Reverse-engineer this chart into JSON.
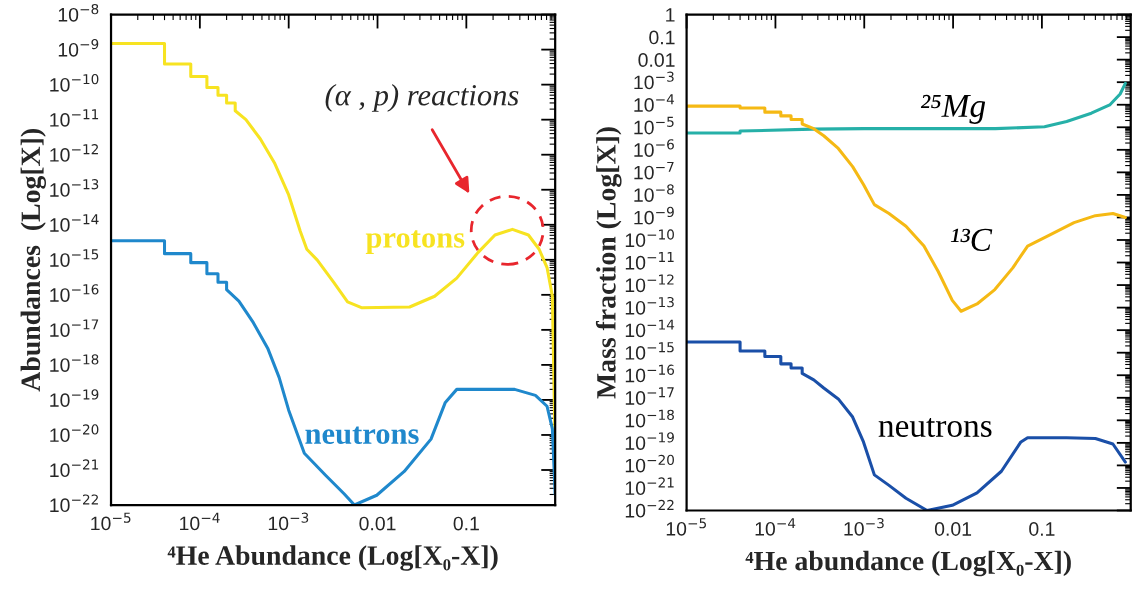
{
  "chart_data": [
    {
      "type": "line",
      "xlabel": "⁴He Abundance (Log[X₀-X])",
      "ylabel": "Abundances  (Log[X])",
      "log": "xy",
      "legend": false,
      "grid": false,
      "xlim": [
        1e-05,
        1
      ],
      "ylim": [
        1e-22,
        1e-08
      ],
      "xticks": [
        {
          "value": 1e-05,
          "label": "10$^{−5}$"
        },
        {
          "value": 0.0001,
          "label": "10$^{−4}$"
        },
        {
          "value": 0.001,
          "label": "10$^{−3}$"
        },
        {
          "value": 0.01,
          "label": "0.01"
        },
        {
          "value": 0.1,
          "label": "0.1"
        }
      ],
      "yticks": [
        {
          "value": 1e-22,
          "label": "10$^{−22}$"
        },
        {
          "value": 1e-21,
          "label": "10$^{−21}$"
        },
        {
          "value": 1e-20,
          "label": "10$^{−20}$"
        },
        {
          "value": 1e-19,
          "label": "10$^{−19}$"
        },
        {
          "value": 1e-18,
          "label": "10$^{−18}$"
        },
        {
          "value": 1e-17,
          "label": "10$^{−17}$"
        },
        {
          "value": 1e-16,
          "label": "10$^{−16}$"
        },
        {
          "value": 1e-15,
          "label": "10$^{−15}$"
        },
        {
          "value": 1e-14,
          "label": "10$^{−14}$"
        },
        {
          "value": 1e-13,
          "label": "10$^{−13}$"
        },
        {
          "value": 1e-12,
          "label": "10$^{−12}$"
        },
        {
          "value": 1e-11,
          "label": "10$^{−11}$"
        },
        {
          "value": 1e-10,
          "label": "10$^{−10}$"
        },
        {
          "value": 1e-09,
          "label": "10$^{−9}$"
        },
        {
          "value": 1e-08,
          "label": "10$^{−8}$"
        }
      ],
      "annotations": [
        "(α , p) reactions"
      ],
      "series": [
        {
          "name": "protons",
          "color": "#f7e321",
          "x": [
            1e-05,
            4e-05,
            4e-05,
            7.9e-05,
            7.9e-05,
            0.00012,
            0.00012,
            0.00016,
            0.00016,
            0.0002,
            0.0002,
            0.00025,
            0.00025,
            0.00033,
            0.00048,
            0.00069,
            0.001,
            0.00135,
            0.0016,
            0.0021,
            0.0032,
            0.0046,
            0.0066,
            0.023,
            0.044,
            0.078,
            0.135,
            0.21,
            0.33,
            0.5,
            0.66,
            0.81,
            0.93,
            1.0
          ],
          "values": [
            1.5e-09,
            1.5e-09,
            3.9e-10,
            3.9e-10,
            1.7e-10,
            1.7e-10,
            8.3e-11,
            8.3e-11,
            5e-11,
            5e-11,
            3e-11,
            3e-11,
            1.8e-11,
            1e-11,
            2.8e-12,
            5.9e-13,
            7.1e-14,
            6.5e-15,
            2e-15,
            9.8e-16,
            2.3e-16,
            6.3e-17,
            4.3e-17,
            4.5e-17,
            9.1e-17,
            3e-16,
            1.6e-15,
            5.1e-15,
            7.4e-15,
            5.1e-15,
            2e-15,
            6e-16,
            9.1e-17,
            4e-21
          ]
        },
        {
          "name": "neutrons",
          "color": "#1f88cc",
          "x": [
            1e-05,
            4e-05,
            4e-05,
            7.9e-05,
            7.9e-05,
            0.00012,
            0.00012,
            0.00016,
            0.00016,
            0.0002,
            0.0002,
            0.000275,
            0.0004,
            0.00058,
            0.00078,
            0.001,
            0.0015,
            0.0026,
            0.0042,
            0.0055,
            0.0098,
            0.02,
            0.04,
            0.058,
            0.078,
            0.18,
            0.35,
            0.6,
            0.81,
            0.93,
            1.0
          ],
          "values": [
            3.5e-15,
            3.5e-15,
            1.5e-15,
            1.5e-15,
            8.3e-16,
            8.3e-16,
            4e-16,
            4e-16,
            2.3e-16,
            2.3e-16,
            1.4e-16,
            6.6e-17,
            1.6e-17,
            3e-18,
            4.4e-19,
            5.1e-20,
            3e-21,
            7.1e-22,
            2.1e-22,
            1e-22,
            1.9e-22,
            9.1e-22,
            7.6e-21,
            8.5e-20,
            2e-19,
            2e-19,
            2e-19,
            1.35e-19,
            6.6e-20,
            1.5e-20,
            2e-22
          ]
        }
      ]
    },
    {
      "type": "line",
      "xlabel": "⁴He abundance (Log[X₀-X])",
      "ylabel": "Mass fraction (Log[X])",
      "log": "xy",
      "legend": false,
      "grid": false,
      "xlim": [
        1e-05,
        1
      ],
      "ylim": [
        1e-22,
        1
      ],
      "xticks": [
        {
          "value": 1e-05,
          "label": "10$^{−5}$"
        },
        {
          "value": 0.0001,
          "label": "10$^{−4}$"
        },
        {
          "value": 0.001,
          "label": "10$^{−3}$"
        },
        0.01,
        0.1
      ],
      "yticks": [
        {
          "value": 1e-22,
          "label": "10$^{−22}$"
        },
        {
          "value": 1e-21,
          "label": "10$^{−21}$"
        },
        {
          "value": 1e-20,
          "label": "10$^{−20}$"
        },
        {
          "value": 1e-19,
          "label": "10$^{−19}$"
        },
        {
          "value": 1e-18,
          "label": "10$^{−18}$"
        },
        {
          "value": 1e-17,
          "label": "10$^{−17}$"
        },
        {
          "value": 1e-16,
          "label": "10$^{−16}$"
        },
        {
          "value": 1e-15,
          "label": "10$^{−15}$"
        },
        {
          "value": 1e-14,
          "label": "10$^{−14}$"
        },
        {
          "value": 1e-13,
          "label": "10$^{−13}$"
        },
        {
          "value": 1e-12,
          "label": "10$^{−12}$"
        },
        {
          "value": 1e-11,
          "label": "10$^{−11}$"
        },
        {
          "value": 1e-10,
          "label": "10$^{−10}$"
        },
        {
          "value": 1e-09,
          "label": "10$^{−9}$"
        },
        {
          "value": 1e-08,
          "label": "10$^{−8}$"
        },
        {
          "value": 1e-07,
          "label": "10$^{−7}$"
        },
        {
          "value": 1e-06,
          "label": "10$^{−6}$"
        },
        {
          "value": 1e-05,
          "label": "10$^{−5}$"
        },
        {
          "value": 0.0001,
          "label": "10$^{−4}$"
        },
        {
          "value": 0.001,
          "label": "10$^{−3}$"
        },
        0.01,
        0.1,
        1
      ],
      "series": [
        {
          "name": "²⁵Mg",
          "color": "#26b0a8",
          "x": [
            1e-05,
            4e-05,
            4e-05,
            0.00026,
            0.001,
            0.03,
            0.107,
            0.19,
            0.36,
            0.58,
            0.76,
            0.87
          ],
          "values": [
            5.6e-06,
            5.6e-06,
            6.8e-06,
            8.3e-06,
            8.7e-06,
            8.7e-06,
            1.05e-05,
            1.8e-05,
            4.2e-05,
            9.8e-05,
            0.0003,
            0.00089
          ]
        },
        {
          "name": "¹³C",
          "color": "#f5b914",
          "x": [
            1e-05,
            4e-05,
            4e-05,
            7.6e-05,
            7.6e-05,
            0.000115,
            0.000115,
            0.00015,
            0.00015,
            0.0002,
            0.0002,
            0.00027,
            0.00035,
            0.00051,
            0.00074,
            0.00098,
            0.0013,
            0.0019,
            0.00295,
            0.0047,
            0.0068,
            0.0098,
            0.0123,
            0.0186,
            0.0295,
            0.047,
            0.069,
            0.12,
            0.23,
            0.4,
            0.63,
            0.87
          ],
          "values": [
            8.7e-05,
            8.7e-05,
            7.2e-05,
            7.2e-05,
            4.7e-05,
            4.7e-05,
            3.2e-05,
            3.2e-05,
            2.2e-05,
            2.2e-05,
            1.4e-05,
            8.7e-06,
            4.2e-06,
            1.15e-06,
            1.8e-07,
            2.9e-08,
            3.7e-09,
            1.5e-09,
            4.1e-10,
            5.4e-11,
            4e-12,
            2.1e-13,
            6.9e-14,
            1.45e-13,
            6.3e-13,
            5.8e-12,
            5.4e-11,
            1.6e-10,
            5.9e-10,
            1.2e-09,
            1.5e-09,
            1e-09
          ]
        },
        {
          "name": "neutrons",
          "color": "#1a4fa8",
          "x": [
            1e-05,
            4e-05,
            4e-05,
            7.6e-05,
            7.6e-05,
            0.000115,
            0.000115,
            0.00015,
            0.00015,
            0.0002,
            0.0002,
            0.00027,
            0.00035,
            0.00051,
            0.00074,
            0.00098,
            0.0013,
            0.0019,
            0.00295,
            0.0051,
            0.0098,
            0.0186,
            0.035,
            0.058,
            0.069,
            0.19,
            0.4,
            0.63,
            0.87
          ],
          "values": [
            3e-15,
            3e-15,
            1.2e-15,
            1.2e-15,
            6.8e-16,
            6.8e-16,
            3.2e-16,
            3.2e-16,
            2.1e-16,
            2.1e-16,
            1.2e-16,
            6.2e-17,
            2.7e-17,
            8.9e-18,
            1.4e-18,
            1.1e-19,
            3.8e-21,
            1.3e-21,
            3.5e-22,
            1e-22,
            1.7e-22,
            6e-22,
            5.5e-21,
            1.1e-19,
            1.7e-19,
            1.7e-19,
            1.55e-19,
            8.9e-20,
            1.4e-20
          ]
        }
      ]
    }
  ]
}
